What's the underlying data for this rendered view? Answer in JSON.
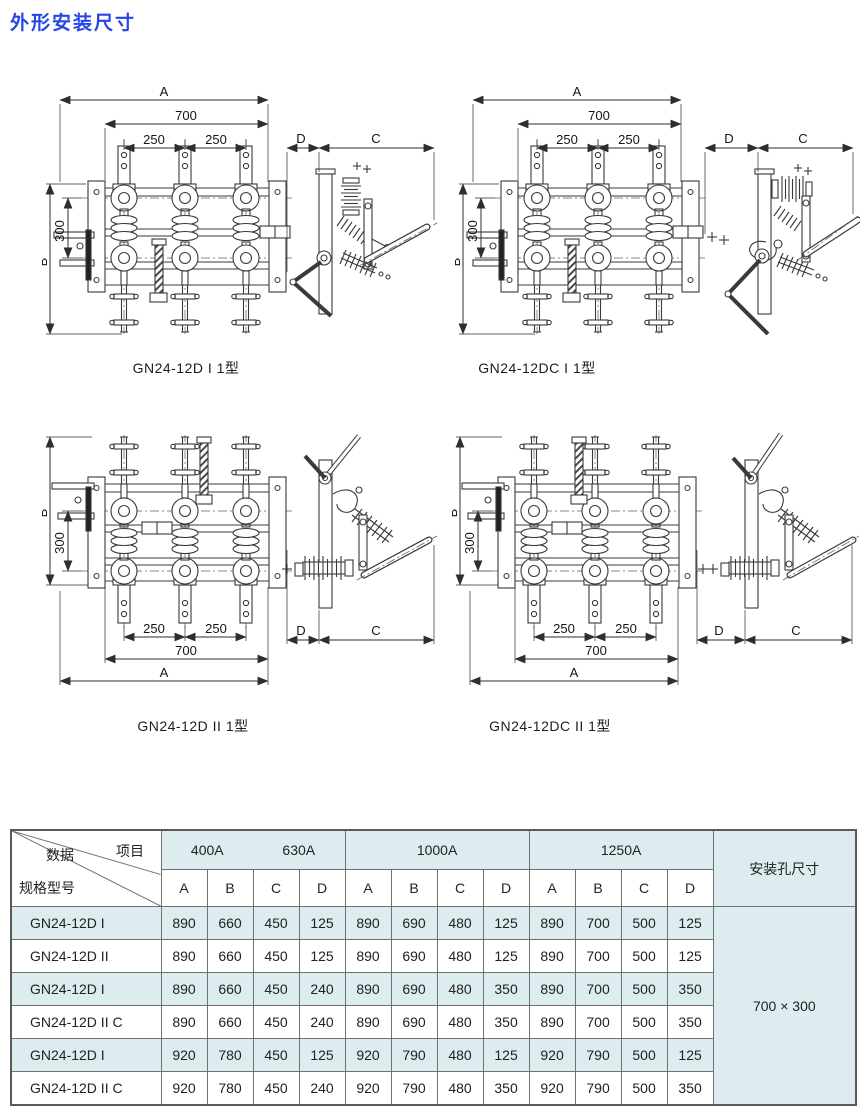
{
  "page": {
    "title": "外形安装尺寸"
  },
  "colors": {
    "title_blue": "#2646e8",
    "table_stripe": "#dcecef",
    "drawing_line": "#3a3a3a"
  },
  "dim_labels": {
    "a": "A",
    "w700": "700",
    "w250": "250",
    "b": "B",
    "h300": "300",
    "d": "D",
    "c": "C"
  },
  "drawings": [
    {
      "caption": "GN24-12D I 1型"
    },
    {
      "caption": "GN24-12DC I 1型"
    },
    {
      "caption": "GN24-12D II 1型"
    },
    {
      "caption": "GN24-12DC II 1型"
    }
  ],
  "table": {
    "corner": {
      "data_label": "数据",
      "item_label": "项目",
      "model_label": "规格型号"
    },
    "current_groups": {
      "g1a": "400A",
      "g1b": "630A",
      "g2": "1000A",
      "g3": "1250A"
    },
    "sub_headers": [
      "A",
      "B",
      "C",
      "D"
    ],
    "install_header": "安装孔尺寸",
    "install_value": "700 × 300",
    "rows": [
      {
        "model": "GN24-12D I",
        "values": [
          "890",
          "660",
          "450",
          "125",
          "890",
          "690",
          "480",
          "125",
          "890",
          "700",
          "500",
          "125"
        ]
      },
      {
        "model": "GN24-12D II",
        "values": [
          "890",
          "660",
          "450",
          "125",
          "890",
          "690",
          "480",
          "125",
          "890",
          "700",
          "500",
          "125"
        ]
      },
      {
        "model": "GN24-12D I",
        "values": [
          "890",
          "660",
          "450",
          "240",
          "890",
          "690",
          "480",
          "350",
          "890",
          "700",
          "500",
          "350"
        ]
      },
      {
        "model": "GN24-12D II C",
        "values": [
          "890",
          "660",
          "450",
          "240",
          "890",
          "690",
          "480",
          "350",
          "890",
          "700",
          "500",
          "350"
        ]
      },
      {
        "model": "GN24-12D I",
        "values": [
          "920",
          "780",
          "450",
          "125",
          "920",
          "790",
          "480",
          "125",
          "920",
          "790",
          "500",
          "125"
        ]
      },
      {
        "model": "GN24-12D II C",
        "values": [
          "920",
          "780",
          "450",
          "240",
          "920",
          "790",
          "480",
          "350",
          "920",
          "790",
          "500",
          "350"
        ]
      }
    ]
  }
}
